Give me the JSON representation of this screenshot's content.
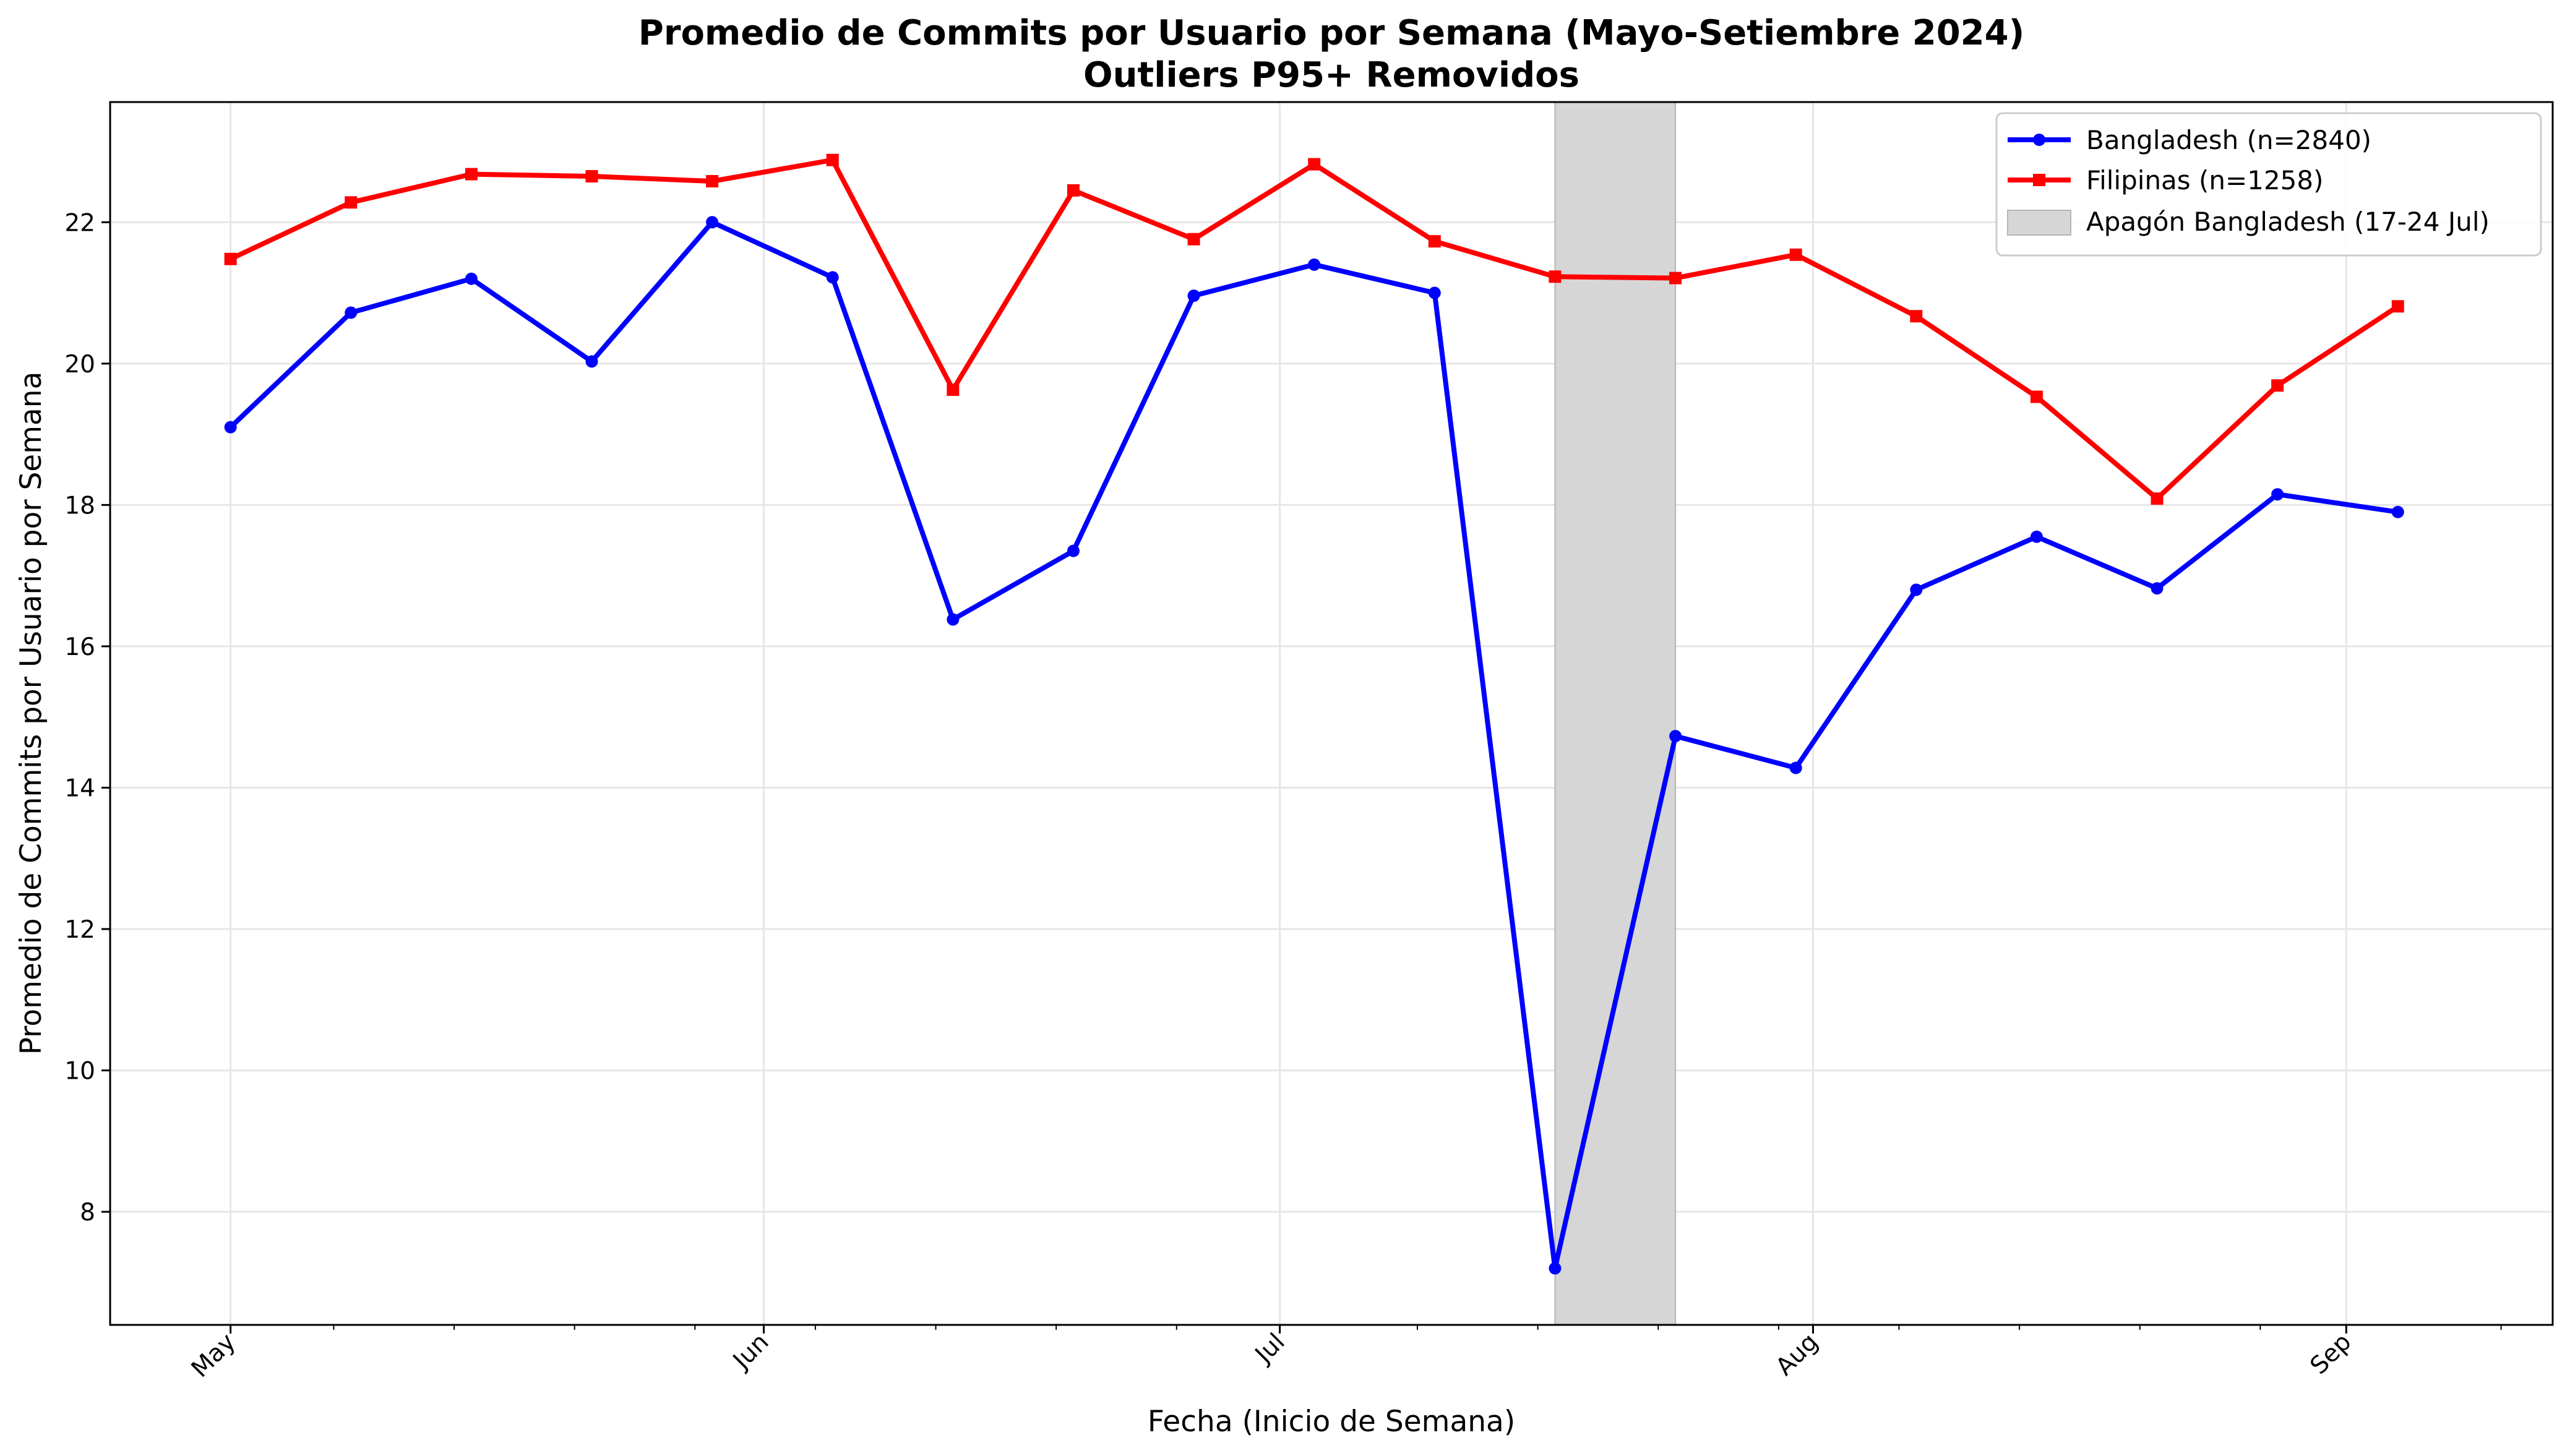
{
  "chart_data": {
    "type": "line",
    "title": "Promedio de Commits por Usuario por Semana (Mayo-Setiembre 2024)",
    "subtitle": "Outliers P95+ Removidos",
    "xlabel": "Fecha (Inicio de Semana)",
    "ylabel": "Promedio de Commits por Usuario por Semana",
    "x_type": "date",
    "x": [
      "2024-05-01",
      "2024-05-08",
      "2024-05-15",
      "2024-05-22",
      "2024-05-29",
      "2024-06-05",
      "2024-06-12",
      "2024-06-19",
      "2024-06-26",
      "2024-07-03",
      "2024-07-10",
      "2024-07-17",
      "2024-07-24",
      "2024-07-31",
      "2024-08-07",
      "2024-08-14",
      "2024-08-21",
      "2024-08-28",
      "2024-09-04"
    ],
    "xlim": [
      "2023-04-24",
      "2024-09-13"
    ],
    "x_range": [
      "2024-04-24",
      "2024-09-13"
    ],
    "x_ticks": [
      {
        "date": "2024-05-01",
        "label": "May"
      },
      {
        "date": "2024-06-01",
        "label": "Jun"
      },
      {
        "date": "2024-07-01",
        "label": "Jul"
      },
      {
        "date": "2024-08-01",
        "label": "Aug"
      },
      {
        "date": "2024-09-01",
        "label": "Sep"
      }
    ],
    "x_minor_ticks": [
      "2024-05-07",
      "2024-05-14",
      "2024-05-21",
      "2024-05-28",
      "2024-06-04",
      "2024-06-11",
      "2024-06-18",
      "2024-06-25",
      "2024-07-09",
      "2024-07-16",
      "2024-07-23",
      "2024-07-30",
      "2024-08-06",
      "2024-08-13",
      "2024-08-20",
      "2024-08-27",
      "2024-09-10"
    ],
    "ylim": [
      6.4,
      23.7
    ],
    "y_ticks": [
      8,
      10,
      12,
      14,
      16,
      18,
      20,
      22
    ],
    "grid": true,
    "legend_position": "top-right",
    "series": [
      {
        "name": "Bangladesh (n=2840)",
        "color": "#0000ff",
        "marker": "circle",
        "values": [
          19.1,
          20.72,
          21.2,
          20.03,
          22.0,
          21.22,
          16.38,
          17.35,
          20.96,
          21.4,
          21.0,
          7.2,
          14.73,
          14.28,
          16.8,
          17.55,
          16.82,
          18.15,
          17.9
        ]
      },
      {
        "name": "Filipinas (n=1258)",
        "color": "#ff0000",
        "marker": "square",
        "values": [
          21.48,
          22.28,
          22.68,
          22.65,
          22.58,
          22.88,
          19.63,
          22.45,
          21.76,
          22.82,
          21.73,
          21.23,
          21.21,
          21.54,
          20.67,
          19.53,
          18.09,
          19.69,
          20.81
        ]
      }
    ],
    "shaded_regions": [
      {
        "name": "Apagón Bangladesh (17-24 Jul)",
        "start": "2024-07-17",
        "end": "2024-07-24",
        "color": "#d6d6d6"
      }
    ]
  }
}
